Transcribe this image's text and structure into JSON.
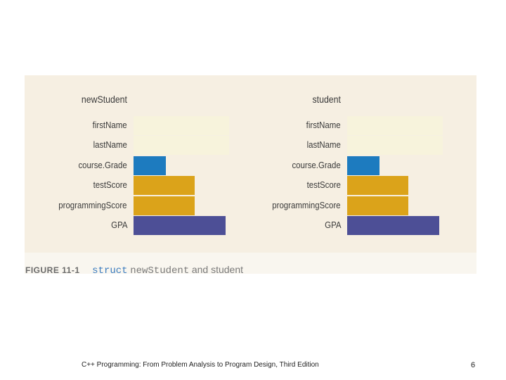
{
  "structs": [
    {
      "name": "newStudent",
      "fields": [
        {
          "label": "firstName",
          "width_fraction": 0.47,
          "color": "#f7f3dc"
        },
        {
          "label": "lastName",
          "width_fraction": 0.47,
          "color": "#f7f3dc"
        },
        {
          "label": "course.Grade",
          "width_fraction": 0.16,
          "color": "#1d7bbf"
        },
        {
          "label": "testScore",
          "width_fraction": 0.3,
          "color": "#dba31a"
        },
        {
          "label": "programmingScore",
          "width_fraction": 0.3,
          "color": "#dba31a"
        },
        {
          "label": "GPA",
          "width_fraction": 0.45,
          "color": "#4d4f96"
        }
      ]
    },
    {
      "name": "student",
      "fields": [
        {
          "label": "firstName",
          "width_fraction": 0.47,
          "color": "#f7f3dc"
        },
        {
          "label": "lastName",
          "width_fraction": 0.47,
          "color": "#f7f3dc"
        },
        {
          "label": "course.Grade",
          "width_fraction": 0.16,
          "color": "#1d7bbf"
        },
        {
          "label": "testScore",
          "width_fraction": 0.3,
          "color": "#dba31a"
        },
        {
          "label": "programmingScore",
          "width_fraction": 0.3,
          "color": "#dba31a"
        },
        {
          "label": "GPA",
          "width_fraction": 0.45,
          "color": "#4d4f96"
        }
      ]
    }
  ],
  "caption": {
    "figure_label": "FIGURE 11-1",
    "keyword": "struct",
    "code": "newStudent",
    "rest": "and student"
  },
  "footer": {
    "title": "C++ Programming: From Problem Analysis to Program Design, Third Edition",
    "page_number": "6"
  }
}
